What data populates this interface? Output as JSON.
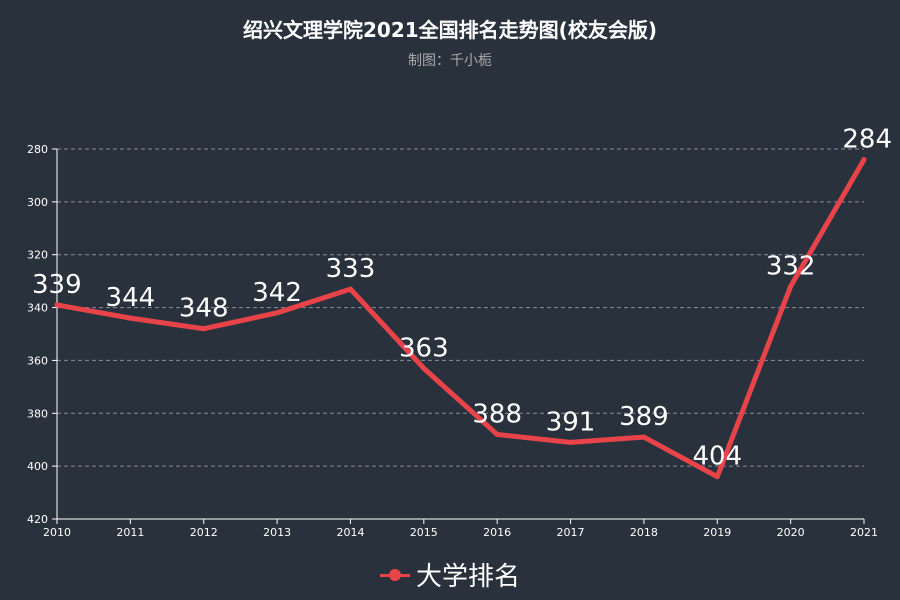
{
  "chart_data": {
    "type": "line",
    "title": "绍兴文理学院2021全国排名走势图(校友会版)",
    "subtitle": "制图：千小栀",
    "categories": [
      "2010",
      "2011",
      "2012",
      "2013",
      "2014",
      "2015",
      "2016",
      "2017",
      "2018",
      "2019",
      "2020",
      "2021"
    ],
    "series": [
      {
        "name": "大学排名",
        "values": [
          339,
          344,
          348,
          342,
          333,
          363,
          388,
          391,
          389,
          404,
          332,
          284
        ],
        "color": "#e9434a"
      }
    ],
    "yaxis": {
      "inverted": true,
      "ylim": [
        280,
        420
      ],
      "ticks": [
        280,
        300,
        320,
        340,
        360,
        380,
        400,
        420
      ]
    },
    "grid": "horizontal-dashed",
    "legend_position": "bottom-center"
  }
}
